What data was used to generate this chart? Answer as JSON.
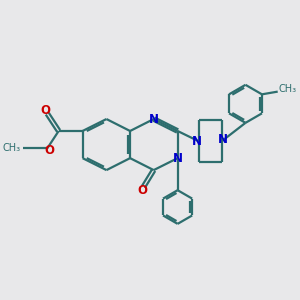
{
  "bg_color": "#e8e8ea",
  "bond_color": "#2d6e6e",
  "nitrogen_color": "#0000cc",
  "oxygen_color": "#cc0000",
  "line_width": 1.6,
  "figsize": [
    3.0,
    3.0
  ],
  "dpi": 100,
  "xlim": [
    0,
    10
  ],
  "ylim": [
    0,
    10
  ]
}
